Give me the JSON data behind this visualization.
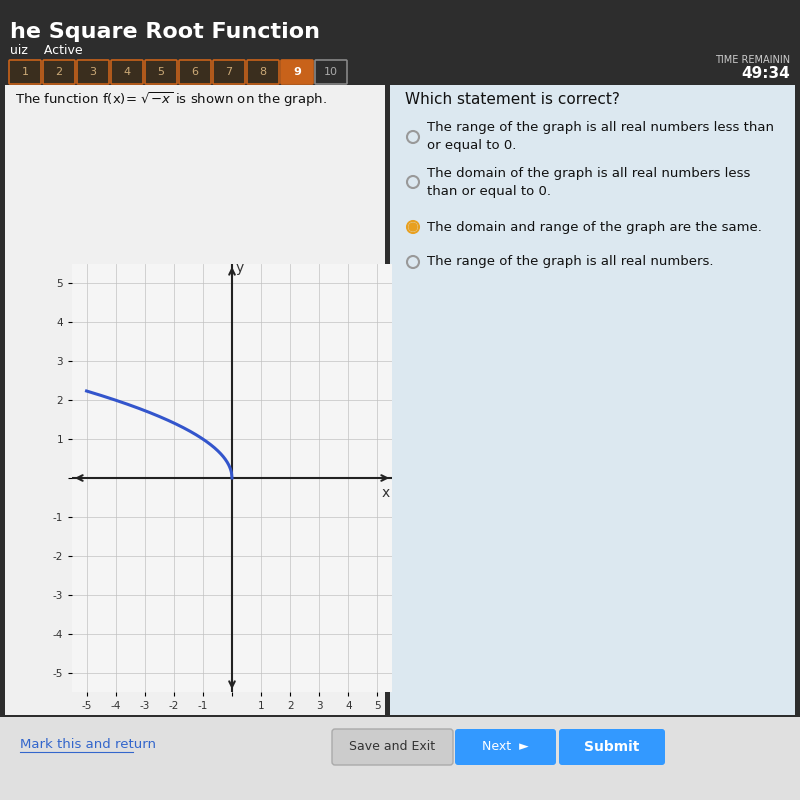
{
  "title": "he Square Root Function",
  "subtitle": "uiz    Active",
  "tab_numbers": [
    1,
    2,
    3,
    4,
    5,
    6,
    7,
    8,
    9,
    10
  ],
  "active_tab": 9,
  "time_remaining": "49:34",
  "question_label": "Which statement is correct?",
  "choices": [
    "The range of the graph is all real numbers less than\nor equal to 0.",
    "The domain of the graph is all real numbers less\nthan or equal to 0.",
    "The domain and range of the graph are the same.",
    "The range of the graph is all real numbers."
  ],
  "selected_choice": 2,
  "bg_dark": "#2d2d2d",
  "tab_color": "#c8621a",
  "tab_border": "#c8621a",
  "curve_color": "#3355cc",
  "grid_color": "#c0c0c0",
  "axis_color": "#222222",
  "text_color_dark": "#ffffff",
  "selected_dot_color": "#e8a020",
  "unselected_dot_color": "#999999",
  "link_color": "#3366cc"
}
